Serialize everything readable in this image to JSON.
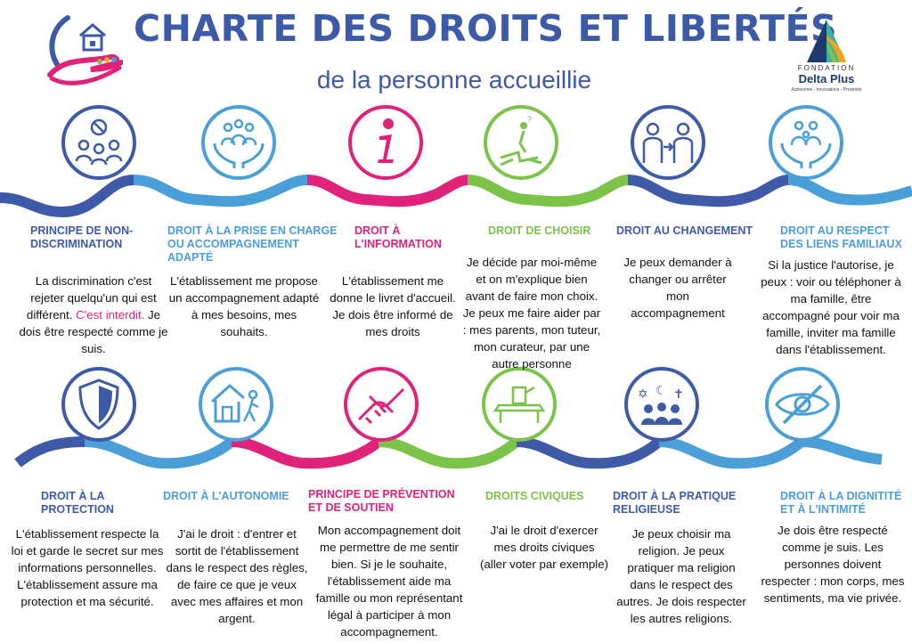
{
  "header": {
    "title": "CHARTE DES DROITS ET LIBERTÉS",
    "subtitle": "de la personne accueillie"
  },
  "logo": {
    "foundation_label": "FONDATION",
    "foundation_name": "Delta Plus",
    "tagline": "Autonomie - Innovations - Proximité"
  },
  "colors": {
    "navy": "#3d5aa8",
    "light_blue": "#4a9fd8",
    "pink": "#e0227a",
    "green": "#7cc34a",
    "dark_blue": "#3f5ba8"
  },
  "rights": [
    {
      "heading": "PRINCIPE DE NON-DISCRIMINATION",
      "text_before": "La discrimination c'est rejeter quelqu'un qui est différent.",
      "text_highlight": "C'est interdit.",
      "text_after": "Je dois être respecté comme je suis.",
      "icon": "people-refusal-icon",
      "color": "#3d5aa8"
    },
    {
      "heading": "DROIT À LA PRISE EN CHARGE OU ACCOMPAGNEMENT ADAPTÉ",
      "text": "L'établissement me propose un accompagnement adapté à mes besoins, mes souhaits.",
      "icon": "hands-people-icon",
      "color": "#4a9fd8"
    },
    {
      "heading": "DROIT À L'INFORMATION",
      "text": "L'établissement me donne le livret d'accueil. Je dois être informé de mes droits",
      "icon": "info-icon",
      "color": "#e0227a"
    },
    {
      "heading": "DROIT DE CHOISIR",
      "text": "Je décide par moi-même et on m'explique bien avant de faire mon choix. Je peux me faire aider par : mes parents, mon tuteur, mon curateur, par une autre personne",
      "icon": "choice-crossroads-icon",
      "color": "#7cc34a"
    },
    {
      "heading": "DROIT AU CHANGEMENT",
      "text": "Je peux demander à changer ou arrêter mon accompagnement",
      "icon": "change-people-icon",
      "color": "#3f5ba8"
    },
    {
      "heading": "DROIT AU RESPECT DES LIENS FAMILIAUX",
      "text": "Si la justice l'autorise, je peux : voir ou téléphoner à ma famille, être accompagné pour voir ma famille, inviter ma famille dans l'établissement.",
      "icon": "family-hands-icon",
      "color": "#4a9fd8"
    },
    {
      "heading": "DROIT À LA PROTECTION",
      "text": "L'établissement respecte la loi et garde le secret sur mes informations personnelles. L'établissement assure ma protection et ma sécurité.",
      "icon": "shield-icon",
      "color": "#3d5aa8"
    },
    {
      "heading": "DROIT À L'AUTONOMIE",
      "text": "J'ai le droit : d'entrer et sortit de l'établissement dans le respect des règles, de faire ce que je veux avec mes affaires et mon argent.",
      "icon": "house-exit-icon",
      "color": "#4a9fd8"
    },
    {
      "heading": "PRINCIPE DE PRÉVENTION ET DE SOUTIEN",
      "text": "Mon accompagnement doit me permettre de me sentir bien. Si je le souhaite, l'établissement aide ma famille ou mon représentant légal à participer à mon accompagnement.",
      "icon": "handshake-icon",
      "color": "#e0227a"
    },
    {
      "heading": "DROITS CIVIQUES",
      "text": "J'ai le droit d'exercer mes droits civiques (aller voter par exemple)",
      "icon": "ballot-box-icon",
      "color": "#7cc34a"
    },
    {
      "heading": "DROIT À LA PRATIQUE RELIGIEUSE",
      "text": "Je peux choisir ma religion. Je peux pratiquer ma religion dans le respect des autres. Je dois respecter les autres religions.",
      "icon": "religions-icon",
      "color": "#3f5ba8"
    },
    {
      "heading": "DROIT À LA DIGNITITÉ ET À L'INTIMITÉ",
      "text": "Je dois être respecté comme je suis. Les personnes doivent respecter : mon corps, mes sentiments, ma vie privée.",
      "icon": "eye-hidden-icon",
      "color": "#4a9fd8"
    }
  ]
}
